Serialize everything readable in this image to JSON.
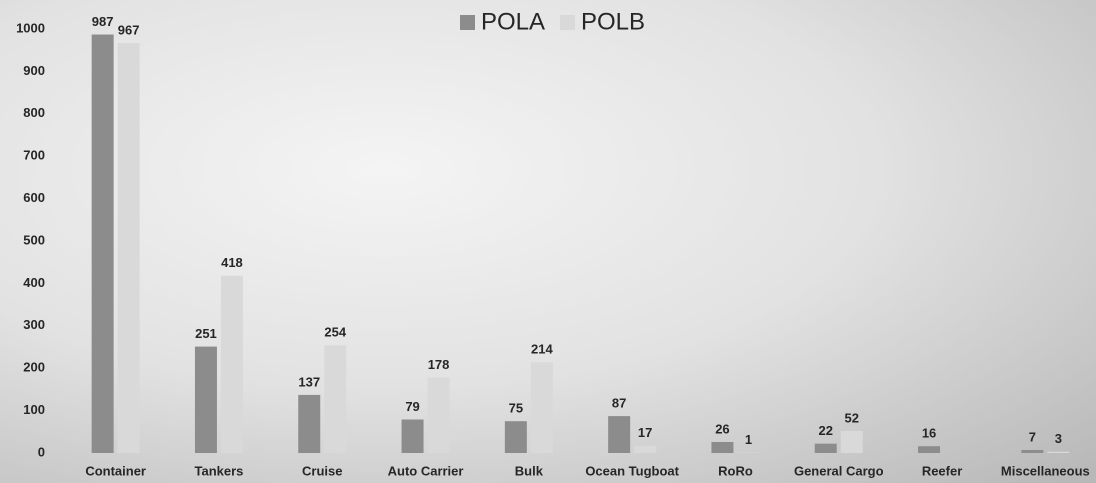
{
  "chart_data": {
    "type": "bar",
    "categories": [
      "Container",
      "Tankers",
      "Cruise",
      "Auto Carrier",
      "Bulk",
      "Ocean Tugboat",
      "RoRo",
      "General Cargo",
      "Reefer",
      "Miscellaneous"
    ],
    "series": [
      {
        "name": "POLA",
        "color": "#8c8c8c",
        "values": [
          987,
          251,
          137,
          79,
          75,
          87,
          26,
          22,
          16,
          7
        ]
      },
      {
        "name": "POLB",
        "color": "#d9d9d9",
        "values": [
          967,
          418,
          254,
          178,
          214,
          17,
          1,
          52,
          null,
          3
        ]
      }
    ],
    "ylim": [
      0,
      1000
    ],
    "yticks": [
      0,
      100,
      200,
      300,
      400,
      500,
      600,
      700,
      800,
      900,
      1000
    ],
    "grid": false,
    "legend": "top"
  }
}
